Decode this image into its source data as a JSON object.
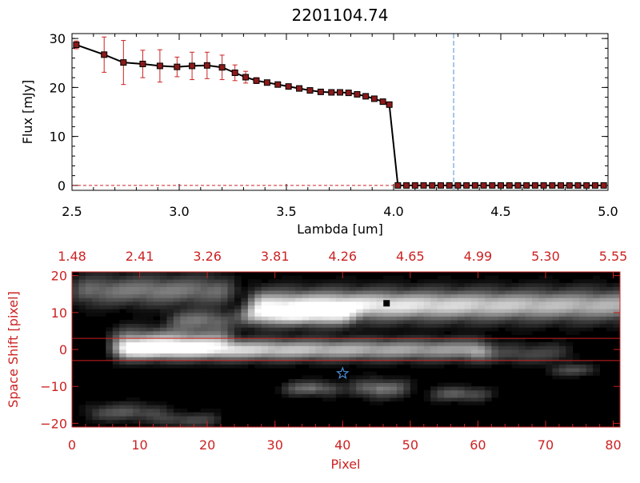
{
  "chart_data": [
    {
      "type": "line",
      "title": "2201104.74",
      "xlabel": "Lambda [um]",
      "ylabel": "Flux [mJy]",
      "xlim": [
        2.5,
        5.0
      ],
      "ylim": [
        -1,
        31
      ],
      "xticks": [
        {
          "v": 2.5,
          "label": "2.5"
        },
        {
          "v": 3.0,
          "label": "3.0"
        },
        {
          "v": 3.5,
          "label": "3.5"
        },
        {
          "v": 4.0,
          "label": "4.0"
        },
        {
          "v": 4.5,
          "label": "4.5"
        },
        {
          "v": 5.0,
          "label": "5.0"
        }
      ],
      "yticks": [
        {
          "v": 0,
          "label": "0"
        },
        {
          "v": 10,
          "label": "10"
        },
        {
          "v": 20,
          "label": "20"
        },
        {
          "v": 30,
          "label": "30"
        }
      ],
      "vline": {
        "x": 4.28,
        "color": "#4a90d9"
      },
      "zero_line_color": "#cc2222",
      "series": [
        {
          "name": "flux",
          "line_color": "#000000",
          "marker_color": "#8b1a1a",
          "error_color": "#cc2222",
          "x": [
            2.52,
            2.65,
            2.74,
            2.83,
            2.91,
            2.99,
            3.06,
            3.13,
            3.2,
            3.26,
            3.31,
            3.36,
            3.41,
            3.46,
            3.51,
            3.56,
            3.61,
            3.66,
            3.71,
            3.75,
            3.79,
            3.83,
            3.87,
            3.91,
            3.95,
            3.98,
            4.02,
            4.06,
            4.1,
            4.14,
            4.18,
            4.22,
            4.26,
            4.3,
            4.34,
            4.38,
            4.42,
            4.46,
            4.5,
            4.54,
            4.58,
            4.62,
            4.66,
            4.7,
            4.74,
            4.78,
            4.82,
            4.86,
            4.9,
            4.94,
            4.98
          ],
          "y": [
            28.7,
            26.7,
            25.1,
            24.8,
            24.4,
            24.2,
            24.4,
            24.5,
            24.1,
            23.0,
            22.1,
            21.4,
            21.0,
            20.6,
            20.2,
            19.8,
            19.4,
            19.1,
            19.0,
            19.0,
            18.9,
            18.6,
            18.2,
            17.7,
            17.1,
            16.5,
            0,
            0,
            0,
            0,
            0,
            0,
            0,
            0,
            0,
            0,
            0,
            0,
            0,
            0,
            0,
            0,
            0,
            0,
            0,
            0,
            0,
            0,
            0,
            0,
            0
          ],
          "err": [
            0.8,
            3.6,
            4.5,
            2.8,
            3.3,
            2.0,
            2.8,
            2.7,
            2.5,
            1.6,
            1.2,
            0.6,
            0.5,
            0.4,
            0.4,
            0.3,
            0.3,
            0.3,
            0.3,
            0.3,
            0.3,
            0.3,
            0.3,
            0.3,
            0.3,
            0.3,
            0,
            0,
            0,
            0,
            0,
            0,
            0,
            0,
            0,
            0,
            0,
            0,
            0,
            0,
            0,
            0,
            0,
            0,
            0,
            0,
            0,
            0,
            0,
            0,
            0
          ]
        }
      ]
    },
    {
      "type": "heatmap",
      "xlabel": "Pixel",
      "ylabel": "Space Shift [pixel]",
      "xlim": [
        0,
        81
      ],
      "ylim": [
        -21,
        21
      ],
      "axis_color": "#cc2222",
      "xticks": [
        {
          "v": 0,
          "label": "0"
        },
        {
          "v": 10,
          "label": "10"
        },
        {
          "v": 20,
          "label": "20"
        },
        {
          "v": 30,
          "label": "30"
        },
        {
          "v": 40,
          "label": "40"
        },
        {
          "v": 50,
          "label": "50"
        },
        {
          "v": 60,
          "label": "60"
        },
        {
          "v": 70,
          "label": "70"
        },
        {
          "v": 80,
          "label": "80"
        }
      ],
      "yticks": [
        {
          "v": -20,
          "label": "−20"
        },
        {
          "v": -10,
          "label": "−10"
        },
        {
          "v": 0,
          "label": "0"
        },
        {
          "v": 10,
          "label": "10"
        },
        {
          "v": 20,
          "label": "20"
        }
      ],
      "top_ticks": [
        {
          "v": 0,
          "label": "1.48"
        },
        {
          "v": 10,
          "label": "2.41"
        },
        {
          "v": 20,
          "label": "3.26"
        },
        {
          "v": 30,
          "label": "3.81"
        },
        {
          "v": 40,
          "label": "4.26"
        },
        {
          "v": 50,
          "label": "4.65"
        },
        {
          "v": 60,
          "label": "4.99"
        },
        {
          "v": 70,
          "label": "5.30"
        },
        {
          "v": 80,
          "label": "5.55"
        }
      ],
      "hlines": [
        3,
        -3
      ],
      "star": {
        "x": 40,
        "y": -6.5,
        "color": "#4a90d9"
      },
      "square_marker": {
        "x": 46.5,
        "y": 12.5
      },
      "blobs": [
        {
          "x0": 8,
          "x1": 60,
          "y": 0,
          "w": 1.8,
          "peak_x": 10.5,
          "peak": 1.0,
          "decay": 40
        },
        {
          "x0": 28,
          "x1": 81,
          "y": 12,
          "w": 2.6,
          "peak_x": 39,
          "peak": 0.95,
          "decay": 60
        },
        {
          "x0": 2,
          "x1": 22,
          "y": 16,
          "w": 2.5,
          "peak_x": 12,
          "peak": 0.45,
          "decay": 30
        },
        {
          "x0": 8,
          "x1": 22,
          "y": 3,
          "w": 2.0,
          "peak_x": 14,
          "peak": 0.5,
          "decay": 20
        },
        {
          "x0": 16,
          "x1": 22,
          "y": 8,
          "w": 1.8,
          "peak_x": 19,
          "peak": 0.4,
          "decay": 10
        },
        {
          "x0": 26,
          "x1": 40,
          "y": 9,
          "w": 1.8,
          "peak_x": 33,
          "peak": 0.55,
          "decay": 20
        },
        {
          "x0": 43,
          "x1": 48,
          "y": -10.5,
          "w": 1.5,
          "peak_x": 45.5,
          "peak": 0.45,
          "decay": 5
        },
        {
          "x0": 33,
          "x1": 38,
          "y": -10.5,
          "w": 1.2,
          "peak_x": 35.5,
          "peak": 0.4,
          "decay": 5
        },
        {
          "x0": 55,
          "x1": 60,
          "y": -12,
          "w": 1.2,
          "peak_x": 57,
          "peak": 0.35,
          "decay": 5
        },
        {
          "x0": 4,
          "x1": 12,
          "y": -17,
          "w": 1.4,
          "peak_x": 8,
          "peak": 0.3,
          "decay": 8
        },
        {
          "x0": 14,
          "x1": 20,
          "y": -19,
          "w": 1.2,
          "peak_x": 17,
          "peak": 0.25,
          "decay": 6
        },
        {
          "x0": 60,
          "x1": 72,
          "y": -1,
          "w": 1.6,
          "peak_x": 66,
          "peak": 0.25,
          "decay": 10
        },
        {
          "x0": 72,
          "x1": 76,
          "y": -5.5,
          "w": 1.0,
          "peak_x": 74,
          "peak": 0.25,
          "decay": 4
        }
      ]
    }
  ]
}
